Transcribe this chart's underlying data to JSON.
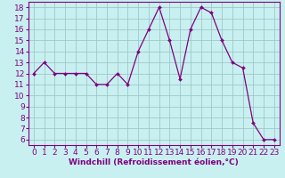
{
  "x": [
    0,
    1,
    2,
    3,
    4,
    5,
    6,
    7,
    8,
    9,
    10,
    11,
    12,
    13,
    14,
    15,
    16,
    17,
    18,
    19,
    20,
    21,
    22,
    23
  ],
  "y": [
    12,
    13,
    12,
    12,
    12,
    12,
    11,
    11,
    12,
    11,
    14,
    16,
    18,
    15,
    11.5,
    16,
    18,
    17.5,
    15,
    13,
    12.5,
    7.5,
    6,
    6
  ],
  "line_color": "#800080",
  "marker_color": "#800080",
  "bg_color": "#c8f0f0",
  "grid_color": "#a0c8c8",
  "xlim": [
    -0.5,
    23.5
  ],
  "ylim": [
    5.5,
    18.5
  ],
  "yticks": [
    6,
    7,
    8,
    9,
    10,
    11,
    12,
    13,
    14,
    15,
    16,
    17,
    18
  ],
  "xticks": [
    0,
    1,
    2,
    3,
    4,
    5,
    6,
    7,
    8,
    9,
    10,
    11,
    12,
    13,
    14,
    15,
    16,
    17,
    18,
    19,
    20,
    21,
    22,
    23
  ],
  "text_color": "#800080",
  "font_size": 6.5,
  "xlabel": "Windchill (Refroidissement éolien,°C)",
  "xlabel_fontsize": 6.5
}
